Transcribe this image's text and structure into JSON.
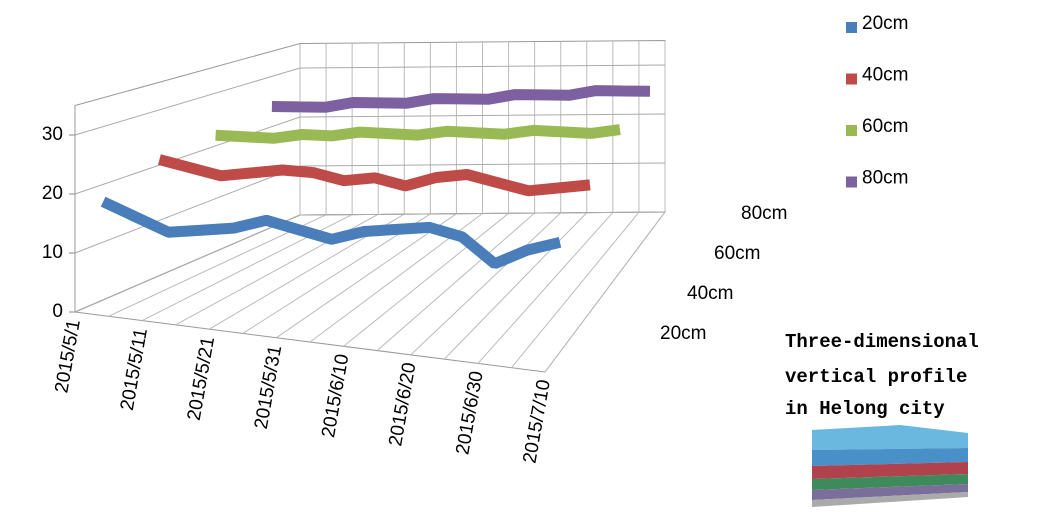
{
  "chart_data": {
    "type": "ribbon3d",
    "categories": [
      "2015/5/1",
      null,
      "2015/5/11",
      null,
      "2015/5/21",
      null,
      "2015/5/31",
      null,
      "2015/6/10",
      null,
      "2015/6/20",
      null,
      "2015/6/30",
      null,
      "2015/7/10"
    ],
    "series": [
      {
        "name": "20cm",
        "color": "#4a7ebb",
        "values": [
          17,
          15,
          13,
          14,
          15,
          17,
          16,
          15,
          17,
          18,
          19,
          18,
          14,
          17,
          19
        ]
      },
      {
        "name": "40cm",
        "color": "#be4b48",
        "values": [
          21,
          20,
          19,
          20,
          21,
          21,
          20,
          21,
          20,
          22,
          23,
          22,
          21,
          22,
          23
        ]
      },
      {
        "name": "60cm",
        "color": "#98b954",
        "values": [
          22,
          22,
          22,
          23,
          23,
          24,
          24,
          24,
          25,
          25,
          25,
          26,
          26,
          26,
          27
        ]
      },
      {
        "name": "80cm",
        "color": "#7d60a0",
        "values": [
          24,
          24,
          24,
          25,
          25,
          25,
          26,
          26,
          26,
          27,
          27,
          27,
          28,
          28,
          28
        ]
      }
    ],
    "ylim": [
      0,
      35
    ],
    "yticks": [
      0,
      10,
      20,
      30
    ],
    "grid": true,
    "annotation_lines": [
      "Three-dimensional",
      "vertical profile",
      "in Helong city"
    ]
  }
}
